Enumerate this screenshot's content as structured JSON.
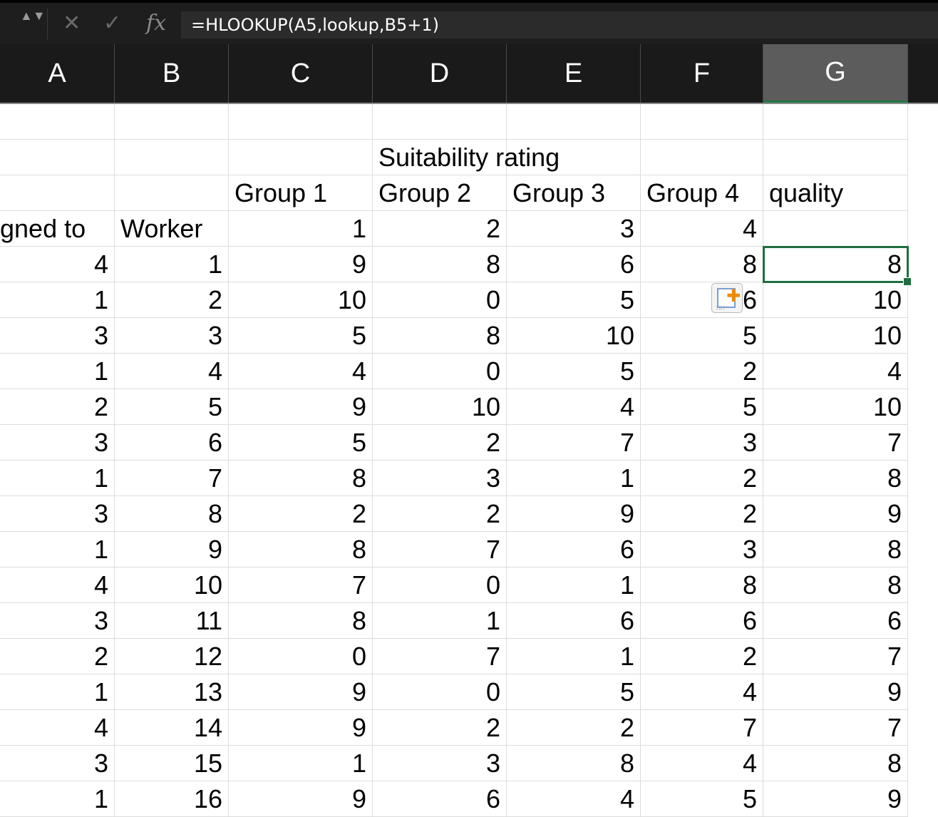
{
  "formula_bar": {
    "stepper": "▲▼",
    "cancel_glyph": "✕",
    "enter_glyph": "✓",
    "fx_label": "fx",
    "formula": "=HLOOKUP(A5,lookup,B5+1)"
  },
  "columns": [
    "A",
    "B",
    "C",
    "D",
    "E",
    "F",
    "G"
  ],
  "selected_column": "G",
  "rows": [
    [
      "",
      "",
      "",
      "",
      "",
      "",
      ""
    ],
    [
      "",
      "",
      "",
      "Suitability rating",
      "",
      "",
      ""
    ],
    [
      "",
      "",
      "Group 1",
      "Group 2",
      "Group 3",
      "Group 4",
      "quality"
    ],
    [
      "gned to",
      "Worker",
      "1",
      "2",
      "3",
      "4",
      ""
    ],
    [
      "4",
      "1",
      "9",
      "8",
      "6",
      "8",
      "8"
    ],
    [
      "1",
      "2",
      "10",
      "0",
      "5",
      "6",
      "10"
    ],
    [
      "3",
      "3",
      "5",
      "8",
      "10",
      "5",
      "10"
    ],
    [
      "1",
      "4",
      "4",
      "0",
      "5",
      "2",
      "4"
    ],
    [
      "2",
      "5",
      "9",
      "10",
      "4",
      "5",
      "10"
    ],
    [
      "3",
      "6",
      "5",
      "2",
      "7",
      "3",
      "7"
    ],
    [
      "1",
      "7",
      "8",
      "3",
      "1",
      "2",
      "8"
    ],
    [
      "3",
      "8",
      "2",
      "2",
      "9",
      "2",
      "9"
    ],
    [
      "1",
      "9",
      "8",
      "7",
      "6",
      "3",
      "8"
    ],
    [
      "4",
      "10",
      "7",
      "0",
      "1",
      "8",
      "8"
    ],
    [
      "3",
      "11",
      "8",
      "1",
      "6",
      "6",
      "6"
    ],
    [
      "2",
      "12",
      "0",
      "7",
      "1",
      "2",
      "7"
    ],
    [
      "1",
      "13",
      "9",
      "0",
      "5",
      "4",
      "9"
    ],
    [
      "4",
      "14",
      "9",
      "2",
      "2",
      "7",
      "7"
    ],
    [
      "3",
      "15",
      "1",
      "3",
      "8",
      "4",
      "8"
    ],
    [
      "1",
      "16",
      "9",
      "6",
      "4",
      "5",
      "9"
    ]
  ],
  "active_cell": {
    "row": 4,
    "col": 6
  },
  "paste_options_icon": "paste-options-icon"
}
